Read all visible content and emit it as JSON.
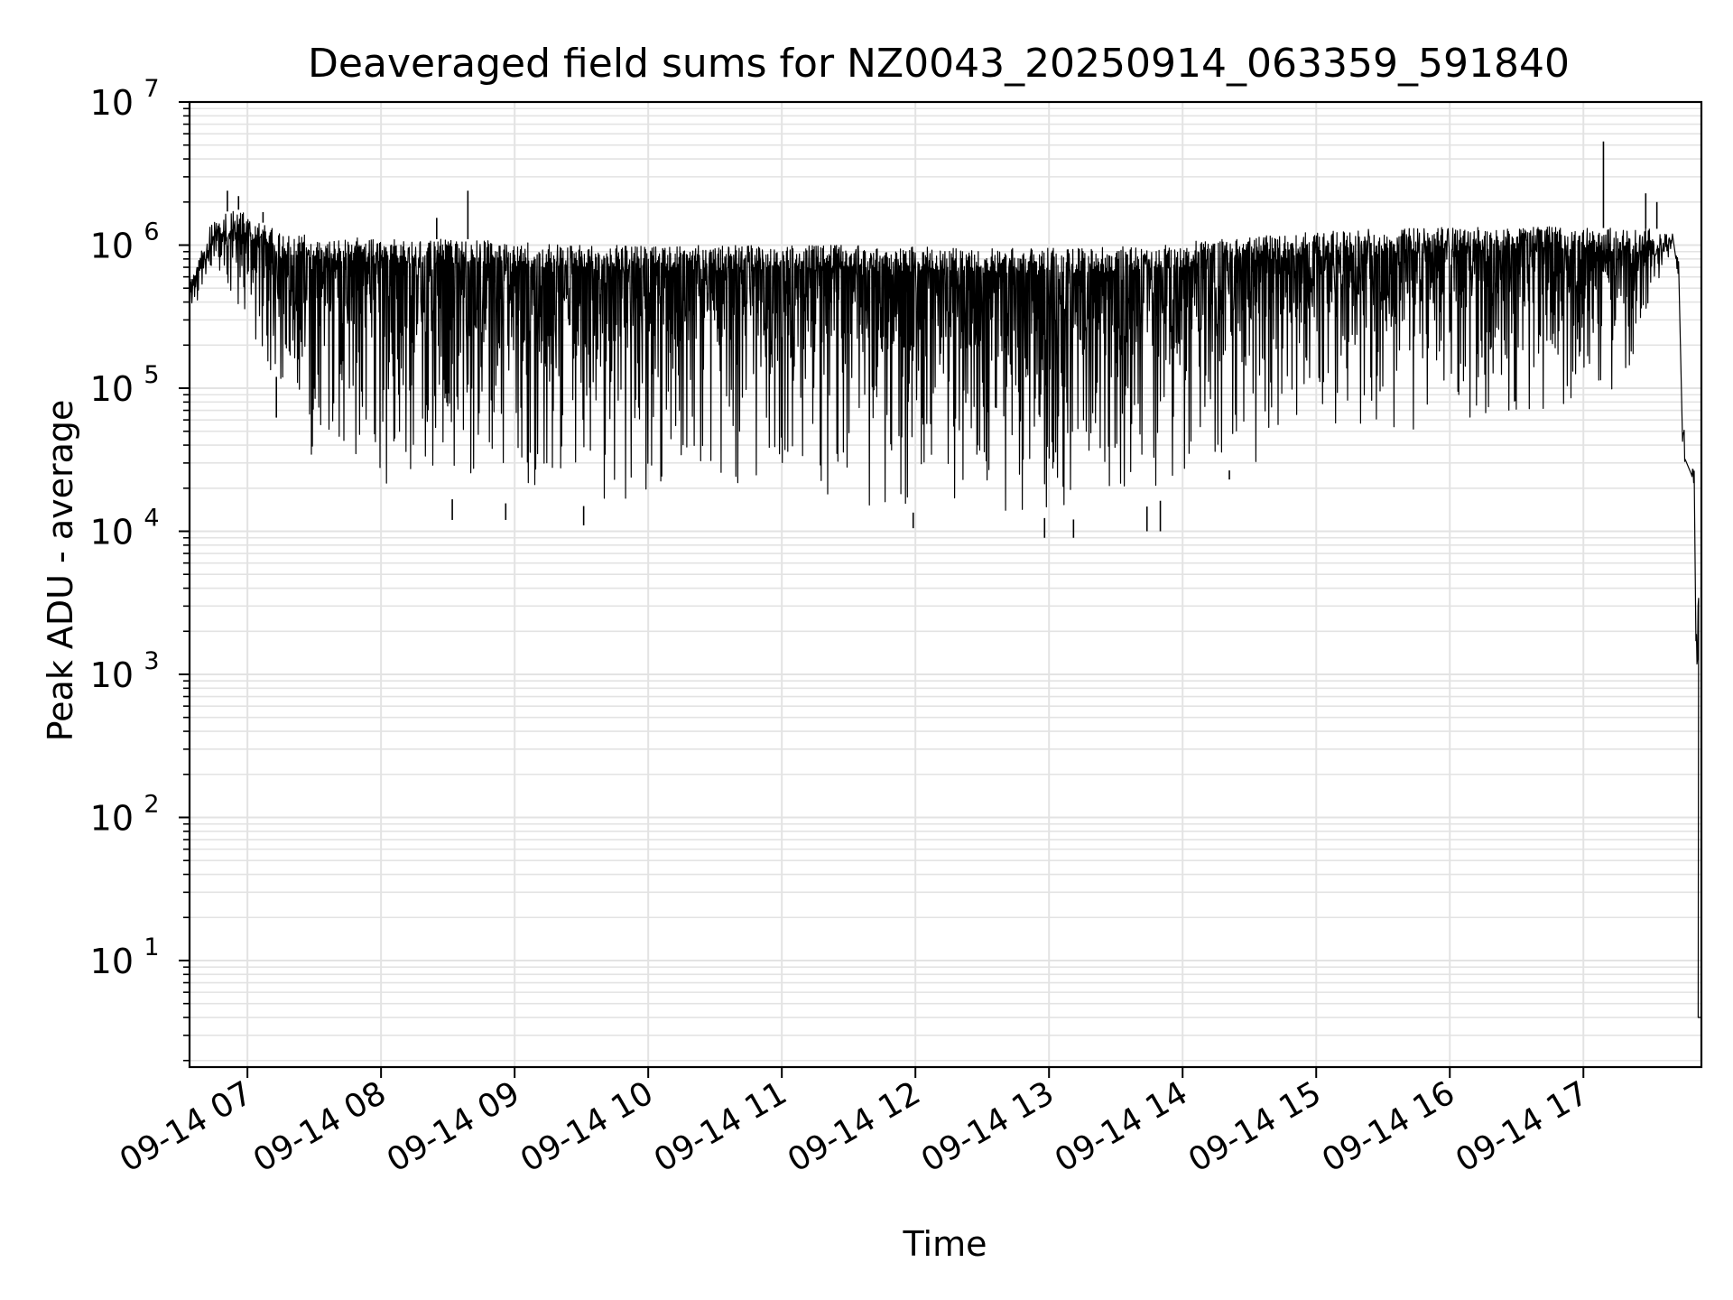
{
  "chart_data": {
    "type": "line",
    "title": "Deaveraged field sums for NZ0043_20250914_063359_591840",
    "xlabel": "Time",
    "ylabel": "Peak ADU - average",
    "y_scale": "log",
    "ylim": [
      1.8,
      10000000
    ],
    "x_start_tick": "09-14 07",
    "xlim": [
      "2025-09-14T06:34",
      "2025-09-14T17:53"
    ],
    "x_ticks": [
      "09-14 07",
      "09-14 08",
      "09-14 09",
      "09-14 10",
      "09-14 11",
      "09-14 12",
      "09-14 13",
      "09-14 14",
      "09-14 15",
      "09-14 16",
      "09-14 17"
    ],
    "y_ticks": [
      {
        "base": "10",
        "exp": "1",
        "value": 10
      },
      {
        "base": "10",
        "exp": "2",
        "value": 100
      },
      {
        "base": "10",
        "exp": "3",
        "value": 1000
      },
      {
        "base": "10",
        "exp": "4",
        "value": 10000
      },
      {
        "base": "10",
        "exp": "5",
        "value": 100000
      },
      {
        "base": "10",
        "exp": "6",
        "value": 1000000
      },
      {
        "base": "10",
        "exp": "7",
        "value": 10000000
      }
    ],
    "grid": true,
    "line_color": "#000000",
    "series": [
      {
        "envelope": [
          {
            "x": "2025-09-14T06:34",
            "upper": 550000,
            "lower": 350000
          },
          {
            "x": "2025-09-14T06:45",
            "upper": 1600000,
            "lower": 450000
          },
          {
            "x": "2025-09-14T06:55",
            "upper": 1800000,
            "lower": 400000
          },
          {
            "x": "2025-09-14T07:05",
            "upper": 1500000,
            "lower": 150000
          },
          {
            "x": "2025-09-14T07:15",
            "upper": 1200000,
            "lower": 50000
          },
          {
            "x": "2025-09-14T07:30",
            "upper": 1200000,
            "lower": 25000
          },
          {
            "x": "2025-09-14T08:00",
            "upper": 1100000,
            "lower": 20000
          },
          {
            "x": "2025-09-14T08:40",
            "upper": 1100000,
            "lower": 16000
          },
          {
            "x": "2025-09-14T09:30",
            "upper": 1000000,
            "lower": 15000
          },
          {
            "x": "2025-09-14T10:30",
            "upper": 1000000,
            "lower": 15000
          },
          {
            "x": "2025-09-14T11:30",
            "upper": 1000000,
            "lower": 14000
          },
          {
            "x": "2025-09-14T12:30",
            "upper": 950000,
            "lower": 13000
          },
          {
            "x": "2025-09-14T13:15",
            "upper": 950000,
            "lower": 12000
          },
          {
            "x": "2025-09-14T13:45",
            "upper": 1000000,
            "lower": 15000
          },
          {
            "x": "2025-09-14T14:15",
            "upper": 1100000,
            "lower": 25000
          },
          {
            "x": "2025-09-14T15:00",
            "upper": 1250000,
            "lower": 40000
          },
          {
            "x": "2025-09-14T16:00",
            "upper": 1350000,
            "lower": 50000
          },
          {
            "x": "2025-09-14T16:45",
            "upper": 1350000,
            "lower": 60000
          },
          {
            "x": "2025-09-14T17:20",
            "upper": 1300000,
            "lower": 100000
          },
          {
            "x": "2025-09-14T17:35",
            "upper": 1300000,
            "lower": 500000
          },
          {
            "x": "2025-09-14T17:40",
            "upper": 1200000,
            "lower": 900000
          },
          {
            "x": "2025-09-14T17:43",
            "upper": 900000,
            "lower": 600000
          },
          {
            "x": "2025-09-14T17:46",
            "upper": 60000,
            "lower": 30000
          },
          {
            "x": "2025-09-14T17:50",
            "upper": 30000,
            "lower": 20000
          },
          {
            "x": "2025-09-14T17:52",
            "upper": 5000,
            "lower": 1000
          },
          {
            "x": "2025-09-14T17:53",
            "upper": 4,
            "lower": 4
          }
        ],
        "spikes": [
          {
            "x": "2025-09-14T06:51",
            "y": 2400000
          },
          {
            "x": "2025-09-14T06:56",
            "y": 2200000
          },
          {
            "x": "2025-09-14T07:07",
            "y": 1700000
          },
          {
            "x": "2025-09-14T08:25",
            "y": 1550000
          },
          {
            "x": "2025-09-14T08:39",
            "y": 2400000
          },
          {
            "x": "2025-09-14T17:09",
            "y": 5300000
          },
          {
            "x": "2025-09-14T17:28",
            "y": 2300000
          },
          {
            "x": "2025-09-14T17:33",
            "y": 2000000
          }
        ],
        "dips": [
          {
            "x": "2025-09-14T07:13",
            "y": 120000
          },
          {
            "x": "2025-09-14T08:32",
            "y": 12000
          },
          {
            "x": "2025-09-14T08:56",
            "y": 12000
          },
          {
            "x": "2025-09-14T09:31",
            "y": 11000
          },
          {
            "x": "2025-09-14T11:59",
            "y": 10500
          },
          {
            "x": "2025-09-14T12:58",
            "y": 9000
          },
          {
            "x": "2025-09-14T13:11",
            "y": 9000
          },
          {
            "x": "2025-09-14T13:44",
            "y": 10000
          },
          {
            "x": "2025-09-14T13:50",
            "y": 10000
          },
          {
            "x": "2025-09-14T14:21",
            "y": 23000
          }
        ]
      }
    ]
  }
}
